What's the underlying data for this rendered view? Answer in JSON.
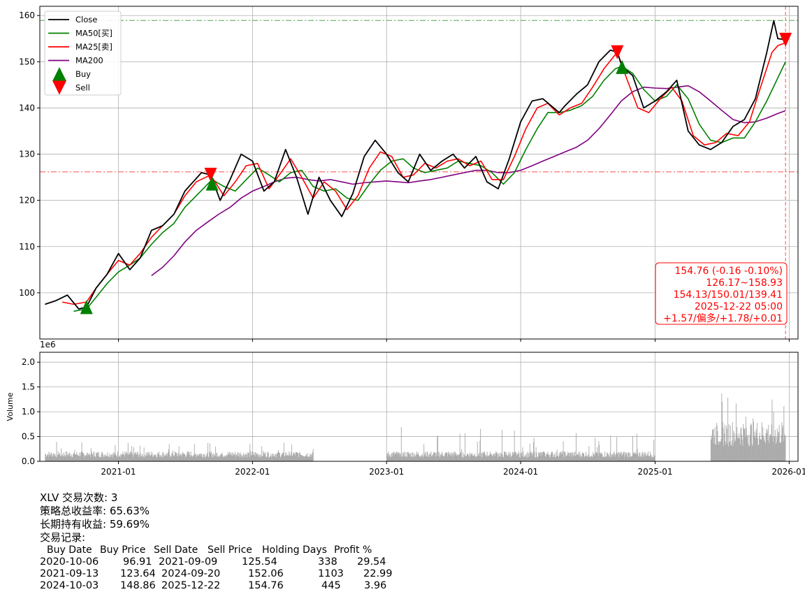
{
  "ticker": "XLV",
  "price_panel": {
    "legend": [
      {
        "label": "Close",
        "color": "#000000",
        "kind": "line"
      },
      {
        "label": "MA50[买]",
        "color": "#008000",
        "kind": "line"
      },
      {
        "label": "MA25[卖]",
        "color": "#ff0000",
        "kind": "line"
      },
      {
        "label": "MA200",
        "color": "#800080",
        "kind": "line"
      },
      {
        "label": "Buy",
        "color": "#008000",
        "kind": "marker-up"
      },
      {
        "label": "Sell",
        "color": "#ff0000",
        "kind": "marker-down"
      }
    ],
    "yticks": [
      "100",
      "110",
      "120",
      "130",
      "140",
      "150",
      "160"
    ],
    "info_box": [
      "154.76 (-0.16 -0.10%)",
      "126.17~158.93",
      "154.13/150.01/139.41",
      "2025-12-22 05:00",
      "+1.57/偏多/+1.78/+0.01"
    ]
  },
  "volume_panel": {
    "ylabel": "Volume",
    "offset_label": "1e6",
    "yticks": [
      "0.0",
      "0.5",
      "1.0",
      "1.5",
      "2.0"
    ]
  },
  "xticks": [
    "2021-01",
    "2022-01",
    "2023-01",
    "2024-01",
    "2025-01",
    "2026-01"
  ],
  "summary": {
    "trade_count": "XLV 交易次数: 3",
    "total_return": "策略总收益率: 65.63%",
    "hold_return": "长期持有收益: 59.69%",
    "records_title": "交易记录:"
  },
  "trades": {
    "headers": [
      "Buy Date",
      "Buy Price",
      "Sell Date",
      "Sell Price",
      "Holding Days",
      "Profit %"
    ],
    "rows": [
      [
        "2020-10-06",
        "96.91",
        "2021-09-09",
        "125.54",
        "338",
        "29.54"
      ],
      [
        "2021-09-13",
        "123.64",
        "2024-09-20",
        "152.06",
        "1103",
        "22.99"
      ],
      [
        "2024-10-03",
        "148.86",
        "2025-12-22",
        "154.76",
        "445",
        "3.96"
      ]
    ]
  },
  "chart_data": {
    "type": "line",
    "x_range": [
      "2020-06-01",
      "2026-01-25"
    ],
    "ylim": [
      90,
      162
    ],
    "grid": true,
    "legend_position": "top-left",
    "hlines": [
      {
        "value": 158.93,
        "color": "#008000",
        "style": "dashdot"
      },
      {
        "value": 126.17,
        "color": "#ff0000",
        "style": "dashdot"
      }
    ],
    "vline": {
      "date": "2025-12-22",
      "color": "#ff0000",
      "style": "dashed"
    },
    "series": [
      {
        "name": "Close",
        "color": "#000000",
        "x": [
          "2020-06-15",
          "2020-07-15",
          "2020-08-15",
          "2020-09-15",
          "2020-10-06",
          "2020-11-01",
          "2020-12-01",
          "2021-01-01",
          "2021-02-01",
          "2021-03-01",
          "2021-04-01",
          "2021-05-01",
          "2021-06-01",
          "2021-07-01",
          "2021-08-15",
          "2021-09-09",
          "2021-10-05",
          "2021-11-01",
          "2021-12-01",
          "2022-01-01",
          "2022-02-01",
          "2022-03-01",
          "2022-04-01",
          "2022-05-01",
          "2022-06-01",
          "2022-07-01",
          "2022-08-01",
          "2022-09-01",
          "2022-10-01",
          "2022-11-01",
          "2022-12-01",
          "2023-01-01",
          "2023-02-01",
          "2023-03-01",
          "2023-04-01",
          "2023-05-01",
          "2023-06-01",
          "2023-07-01",
          "2023-08-01",
          "2023-09-01",
          "2023-10-01",
          "2023-11-01",
          "2023-12-01",
          "2024-01-01",
          "2024-02-01",
          "2024-03-01",
          "2024-04-15",
          "2024-05-01",
          "2024-06-01",
          "2024-07-01",
          "2024-08-01",
          "2024-09-01",
          "2024-09-20",
          "2024-10-03",
          "2024-11-01",
          "2024-12-01",
          "2025-01-01",
          "2025-02-01",
          "2025-03-01",
          "2025-04-01",
          "2025-05-01",
          "2025-06-01",
          "2025-07-01",
          "2025-08-01",
          "2025-09-01",
          "2025-10-01",
          "2025-11-01",
          "2025-11-20",
          "2025-12-01",
          "2025-12-22"
        ],
        "values": [
          97.5,
          98.3,
          99.5,
          96.5,
          96.9,
          101.0,
          104.0,
          108.5,
          105.0,
          107.5,
          113.5,
          114.5,
          117.0,
          122.0,
          126.0,
          125.5,
          120.0,
          124.5,
          130.0,
          128.5,
          122.0,
          124.0,
          131.0,
          125.0,
          117.0,
          125.0,
          120.0,
          116.5,
          121.5,
          129.5,
          133.0,
          130.0,
          126.0,
          124.0,
          130.0,
          126.5,
          128.5,
          130.0,
          127.0,
          129.5,
          124.0,
          122.5,
          129.0,
          137.0,
          141.5,
          142.0,
          139.0,
          140.5,
          143.0,
          145.0,
          150.0,
          152.5,
          152.1,
          148.9,
          147.0,
          140.0,
          141.5,
          143.5,
          146.0,
          135.0,
          132.0,
          131.0,
          132.5,
          136.0,
          137.5,
          142.0,
          152.0,
          158.9,
          155.0,
          154.8
        ]
      },
      {
        "name": "MA50[买]",
        "color": "#008000",
        "x": [
          "2020-09-01",
          "2020-10-06",
          "2020-11-01",
          "2020-12-01",
          "2021-01-01",
          "2021-02-01",
          "2021-03-01",
          "2021-04-01",
          "2021-05-01",
          "2021-06-01",
          "2021-07-01",
          "2021-08-01",
          "2021-09-13",
          "2021-10-15",
          "2021-11-15",
          "2021-12-15",
          "2022-01-15",
          "2022-02-15",
          "2022-03-15",
          "2022-04-15",
          "2022-05-15",
          "2022-06-15",
          "2022-07-15",
          "2022-08-15",
          "2022-09-15",
          "2022-10-15",
          "2022-11-15",
          "2022-12-15",
          "2023-01-15",
          "2023-02-15",
          "2023-03-15",
          "2023-04-15",
          "2023-05-15",
          "2023-06-15",
          "2023-07-15",
          "2023-08-15",
          "2023-09-15",
          "2023-10-15",
          "2023-11-15",
          "2023-12-15",
          "2024-01-15",
          "2024-02-15",
          "2024-03-15",
          "2024-04-15",
          "2024-05-15",
          "2024-06-15",
          "2024-07-15",
          "2024-08-15",
          "2024-09-15",
          "2024-10-03",
          "2024-11-01",
          "2024-12-01",
          "2025-01-01",
          "2025-02-01",
          "2025-03-01",
          "2025-04-01",
          "2025-05-01",
          "2025-06-01",
          "2025-07-01",
          "2025-08-01",
          "2025-09-01",
          "2025-10-01",
          "2025-11-01",
          "2025-12-01",
          "2025-12-22"
        ],
        "values": [
          96.0,
          96.5,
          99.0,
          102.0,
          104.5,
          106.0,
          107.5,
          110.5,
          113.0,
          115.0,
          118.5,
          121.0,
          124.5,
          123.0,
          122.0,
          124.5,
          127.0,
          125.5,
          124.0,
          126.0,
          126.5,
          123.0,
          122.0,
          122.5,
          120.5,
          120.0,
          123.5,
          126.5,
          128.5,
          129.0,
          127.0,
          126.0,
          126.5,
          127.0,
          128.5,
          128.0,
          127.5,
          126.0,
          123.5,
          126.0,
          131.0,
          135.5,
          139.0,
          139.0,
          139.5,
          140.5,
          142.5,
          146.0,
          148.5,
          149.0,
          147.5,
          144.0,
          141.5,
          142.5,
          145.0,
          142.0,
          136.5,
          133.0,
          132.5,
          133.5,
          133.5,
          137.0,
          141.5,
          146.5,
          150.0
        ]
      },
      {
        "name": "MA25[卖]",
        "color": "#ff0000",
        "x": [
          "2020-08-01",
          "2020-09-01",
          "2020-10-06",
          "2020-11-01",
          "2020-12-01",
          "2021-01-01",
          "2021-02-01",
          "2021-03-01",
          "2021-04-01",
          "2021-05-01",
          "2021-06-01",
          "2021-07-01",
          "2021-08-01",
          "2021-09-09",
          "2021-10-15",
          "2021-11-15",
          "2021-12-15",
          "2022-01-15",
          "2022-02-15",
          "2022-03-15",
          "2022-04-15",
          "2022-05-15",
          "2022-06-15",
          "2022-07-15",
          "2022-08-15",
          "2022-09-15",
          "2022-10-15",
          "2022-11-15",
          "2022-12-15",
          "2023-01-15",
          "2023-02-15",
          "2023-03-15",
          "2023-04-15",
          "2023-05-15",
          "2023-06-15",
          "2023-07-15",
          "2023-08-15",
          "2023-09-15",
          "2023-10-15",
          "2023-11-15",
          "2023-12-15",
          "2024-01-15",
          "2024-02-15",
          "2024-03-15",
          "2024-04-15",
          "2024-05-15",
          "2024-06-15",
          "2024-07-15",
          "2024-08-15",
          "2024-09-20",
          "2024-10-15",
          "2024-11-15",
          "2024-12-15",
          "2025-01-15",
          "2025-02-15",
          "2025-03-15",
          "2025-04-15",
          "2025-05-15",
          "2025-06-15",
          "2025-07-15",
          "2025-08-15",
          "2025-09-15",
          "2025-10-15",
          "2025-11-15",
          "2025-12-01",
          "2025-12-22"
        ],
        "values": [
          98.0,
          97.5,
          98.0,
          101.0,
          104.0,
          107.0,
          106.0,
          108.5,
          112.0,
          114.5,
          117.0,
          121.0,
          124.0,
          125.5,
          121.0,
          124.0,
          127.5,
          128.0,
          122.5,
          125.5,
          129.0,
          125.0,
          120.5,
          124.0,
          122.0,
          118.0,
          121.0,
          127.0,
          130.5,
          129.5,
          125.0,
          125.5,
          128.0,
          127.0,
          128.5,
          129.0,
          127.5,
          128.5,
          124.5,
          124.5,
          129.5,
          135.5,
          140.0,
          141.0,
          138.5,
          140.0,
          141.0,
          144.5,
          148.5,
          152.1,
          146.5,
          140.0,
          139.0,
          142.0,
          144.5,
          141.5,
          134.0,
          132.0,
          132.5,
          134.5,
          134.0,
          137.0,
          144.5,
          152.0,
          153.5,
          154.1
        ]
      },
      {
        "name": "MA200",
        "color": "#800080",
        "x": [
          "2021-04-01",
          "2021-05-01",
          "2021-06-01",
          "2021-07-01",
          "2021-08-01",
          "2021-09-01",
          "2021-10-01",
          "2021-11-01",
          "2021-12-01",
          "2022-01-01",
          "2022-02-01",
          "2022-03-01",
          "2022-04-01",
          "2022-05-01",
          "2022-06-01",
          "2022-07-01",
          "2022-08-01",
          "2022-09-01",
          "2022-10-01",
          "2022-11-01",
          "2022-12-01",
          "2023-01-01",
          "2023-02-01",
          "2023-03-01",
          "2023-04-01",
          "2023-05-01",
          "2023-06-01",
          "2023-07-01",
          "2023-08-01",
          "2023-09-01",
          "2023-10-01",
          "2023-11-01",
          "2023-12-01",
          "2024-01-01",
          "2024-02-01",
          "2024-03-01",
          "2024-04-01",
          "2024-05-01",
          "2024-06-01",
          "2024-07-01",
          "2024-08-01",
          "2024-09-01",
          "2024-10-01",
          "2024-11-01",
          "2024-12-01",
          "2025-01-01",
          "2025-02-01",
          "2025-03-01",
          "2025-04-01",
          "2025-05-01",
          "2025-06-01",
          "2025-07-01",
          "2025-08-01",
          "2025-09-01",
          "2025-10-01",
          "2025-11-01",
          "2025-12-01",
          "2025-12-22"
        ],
        "values": [
          103.7,
          105.5,
          108.0,
          111.0,
          113.5,
          115.3,
          117.0,
          118.5,
          120.5,
          122.0,
          123.0,
          124.0,
          124.8,
          125.0,
          124.5,
          124.2,
          124.5,
          124.0,
          123.5,
          123.8,
          124.0,
          124.2,
          124.0,
          123.8,
          124.2,
          124.5,
          125.0,
          125.5,
          126.0,
          126.5,
          126.5,
          126.0,
          126.0,
          126.5,
          127.5,
          128.5,
          129.5,
          130.5,
          131.5,
          133.0,
          135.5,
          138.5,
          141.5,
          143.5,
          144.5,
          144.3,
          144.2,
          144.5,
          144.8,
          143.5,
          141.5,
          139.5,
          137.5,
          136.8,
          137.0,
          137.8,
          138.8,
          139.4
        ]
      }
    ],
    "markers": [
      {
        "name": "Buy",
        "date": "2020-10-06",
        "value": 96.91
      },
      {
        "name": "Sell",
        "date": "2021-09-09",
        "value": 125.54
      },
      {
        "name": "Buy",
        "date": "2021-09-13",
        "value": 123.64
      },
      {
        "name": "Sell",
        "date": "2024-09-20",
        "value": 152.06
      },
      {
        "name": "Buy",
        "date": "2024-10-03",
        "value": 148.86
      },
      {
        "name": "Sell",
        "date": "2025-12-22",
        "value": 154.76
      }
    ],
    "volume": {
      "ylim": [
        0,
        2.2
      ],
      "unit": "1e6",
      "segments": [
        {
          "start": "2020-06-15",
          "end": "2022-06-15",
          "typical": 0.15,
          "peak": 0.4
        },
        {
          "start": "2023-01-01",
          "end": "2024-12-31",
          "typical": 0.15,
          "peak": 0.7
        },
        {
          "start": "2025-06-01",
          "end": "2025-12-22",
          "typical": 0.6,
          "peak": 1.4
        }
      ]
    }
  }
}
